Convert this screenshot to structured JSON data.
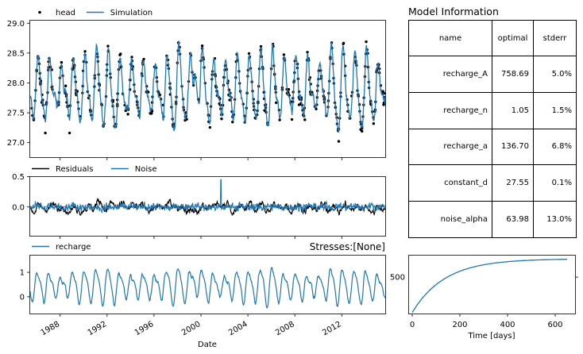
{
  "chart_data": [
    {
      "type": "line",
      "panel": "heads",
      "legend_position": "top-left, above axes",
      "legend": [
        {
          "label": "head",
          "marker": "dot",
          "color": "#000000"
        },
        {
          "label": "Simulation",
          "marker": "line",
          "color": "#1f77b4"
        }
      ],
      "x_range": [
        "1985-06",
        "2015-09"
      ],
      "ylim": [
        26.75,
        29.05
      ],
      "yticks": [
        "27.0",
        "27.5",
        "28.0",
        "28.5",
        "29.0"
      ],
      "series": [
        {
          "name": "head",
          "kind": "scatter",
          "color": "#000000",
          "note": "irregular observations of groundwater head, roughly 27.2 to 28.8 m"
        },
        {
          "name": "Simulation",
          "kind": "line",
          "color": "#1f77b4",
          "note": "simulated head with annual oscillation between about 27.0 and 28.8 m, peak near 29.0 around 1999"
        }
      ]
    },
    {
      "type": "line",
      "panel": "residuals",
      "legend_position": "top-left, above axes",
      "legend": [
        {
          "label": "Residuals",
          "color": "#000000"
        },
        {
          "label": "Noise",
          "color": "#1f77b4"
        }
      ],
      "ylim": [
        -0.48,
        0.5
      ],
      "yticks": [
        "0.0",
        "0.5"
      ],
      "series": [
        {
          "name": "Residuals",
          "color": "#000000",
          "range": [
            -0.35,
            0.3
          ]
        },
        {
          "name": "Noise",
          "color": "#1f77b4",
          "range": [
            -0.42,
            0.45
          ],
          "spike": {
            "date": "2001-09",
            "value": 0.45
          }
        }
      ]
    },
    {
      "type": "line",
      "panel": "contributions",
      "legend_position": "top-left, above axes",
      "title_right": "Stresses:[None]",
      "legend": [
        {
          "label": "recharge",
          "color": "#1f77b4"
        }
      ],
      "ylim": [
        -0.7,
        1.7
      ],
      "yticks": [
        "0",
        "1"
      ],
      "xticks": [
        "1988",
        "1992",
        "1996",
        "2000",
        "2004",
        "2008",
        "2012"
      ],
      "xlabel": "Date",
      "series": [
        {
          "name": "recharge",
          "color": "#1f77b4",
          "note": "annual oscillation roughly between -0.5 and 1.4"
        }
      ]
    },
    {
      "type": "line",
      "panel": "step response",
      "xlabel": "Time [days]",
      "xlim": [
        -15,
        685
      ],
      "xticks": [
        "0",
        "200",
        "400",
        "600"
      ],
      "ylim": [
        -20,
        810
      ],
      "yticks": [
        "500"
      ],
      "series": [
        {
          "name": "recharge step",
          "color": "#1f77b4",
          "function": "A*(1-exp(-t/a))",
          "A": 758.69,
          "a": 136.7,
          "t_max": 650
        }
      ]
    }
  ],
  "model_info": {
    "title": "Model Information",
    "headers": [
      "name",
      "optimal",
      "stderr"
    ],
    "rows": [
      {
        "name": "recharge_A",
        "optimal": "758.69",
        "stderr": "5.0%"
      },
      {
        "name": "recharge_n",
        "optimal": "1.05",
        "stderr": "1.5%"
      },
      {
        "name": "recharge_a",
        "optimal": "136.70",
        "stderr": "6.8%"
      },
      {
        "name": "constant_d",
        "optimal": "27.55",
        "stderr": "0.1%"
      },
      {
        "name": "noise_alpha",
        "optimal": "63.98",
        "stderr": "13.0%"
      }
    ]
  },
  "colors": {
    "blue": "#1f77b4",
    "black": "#000000"
  }
}
